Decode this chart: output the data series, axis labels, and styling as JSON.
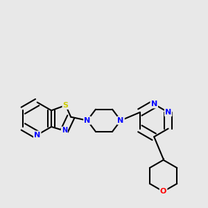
{
  "bg_color": "#e8e8e8",
  "bond_color": "#000000",
  "bond_width": 1.5,
  "atom_colors": {
    "N": "#0000ff",
    "S": "#cccc00",
    "O": "#ff0000",
    "C": "#000000"
  },
  "font_size": 8
}
